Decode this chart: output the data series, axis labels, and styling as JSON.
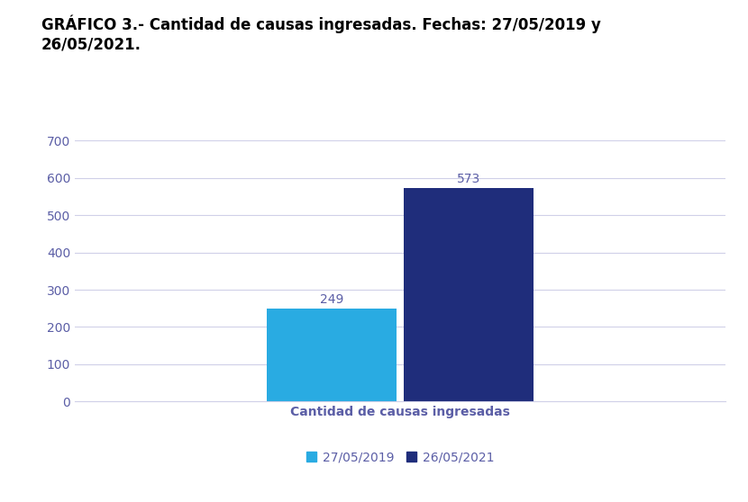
{
  "title_line1": "GRÁFICO 3.- Cantidad de causas ingresadas. Fechas: 27/05/2019 y",
  "title_line2": "26/05/2021.",
  "category": "Cantidad de causas ingresadas",
  "series": [
    {
      "label": "27/05/2019",
      "value": 249,
      "color": "#29ABE2"
    },
    {
      "label": "26/05/2021",
      "value": 573,
      "color": "#1F2D7B"
    }
  ],
  "ylim": [
    0,
    700
  ],
  "yticks": [
    0,
    100,
    200,
    300,
    400,
    500,
    600,
    700
  ],
  "bar_width": 0.18,
  "bar_gap": 0.01,
  "background_color": "#ffffff",
  "plot_bg_color": "#ffffff",
  "title_fontsize": 12,
  "title_fontweight": "bold",
  "category_fontsize": 10,
  "category_fontweight": "bold",
  "tick_fontsize": 10,
  "legend_fontsize": 10,
  "value_label_color": "#5B5EA6",
  "tick_label_color": "#5B5EA6",
  "grid_color": "#D0D0E8",
  "grid_linewidth": 0.8,
  "axis_color": "#D0D0E8"
}
